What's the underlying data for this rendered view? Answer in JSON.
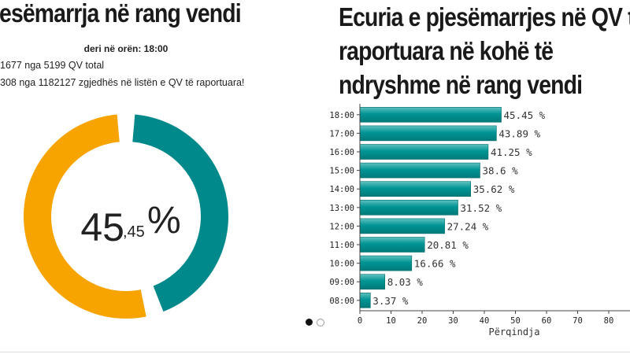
{
  "left": {
    "title": "jesëmarrja në rang vendi",
    "as_of_label": "deri në orën: 18:00",
    "stat_qv": "1677 nga 5199 QV total",
    "stat_voters": "308 nga 1182127 zgjedhës në listën e QV të raportuara!",
    "donut_major": "45",
    "donut_minor": ",45",
    "donut_pct": "%"
  },
  "right": {
    "title": "Ecuria e pjesëmarrjes në QV të raportuara në kohë të ndryshme në rang vendi"
  },
  "colors": {
    "teal": "#00898a",
    "orange": "#f7a400"
  },
  "chart_data": [
    {
      "type": "pie",
      "values": [
        45.45,
        54.55
      ],
      "center_label": "45,45 %",
      "colors": [
        "#00898a",
        "#f7a400"
      ]
    },
    {
      "type": "bar",
      "orientation": "horizontal",
      "categories": [
        "18:00",
        "17:00",
        "16:00",
        "15:00",
        "14:00",
        "13:00",
        "12:00",
        "11:00",
        "10:00",
        "09:00",
        "08:00"
      ],
      "values": [
        45.45,
        43.89,
        41.25,
        38.6,
        35.62,
        31.52,
        27.24,
        20.81,
        16.66,
        8.03,
        3.37
      ],
      "value_labels": [
        "45.45 %",
        "43.89 %",
        "41.25 %",
        "38.6 %",
        "35.62 %",
        "31.52 %",
        "27.24 %",
        "20.81 %",
        "16.66 %",
        "8.03 %",
        "3.37 %"
      ],
      "xlabel": "Përqindja",
      "xticks": [
        0,
        10,
        20,
        30,
        40,
        50,
        60,
        70,
        80
      ],
      "xlim": [
        0,
        85
      ],
      "color": "#00898a"
    }
  ],
  "pager": {
    "active_index": 0,
    "count": 2
  }
}
